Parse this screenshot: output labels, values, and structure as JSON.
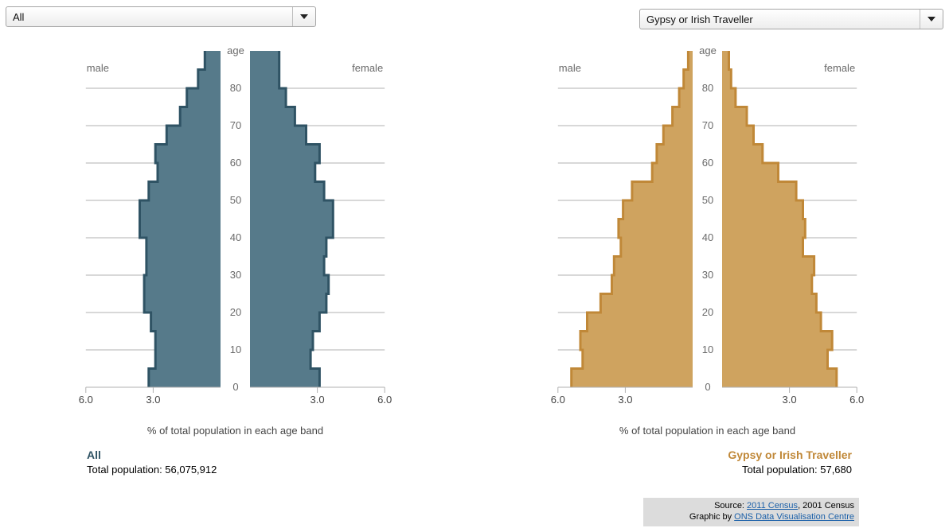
{
  "left_selector": {
    "value": "All"
  },
  "right_selector": {
    "value": "Gypsy or Irish Traveller"
  },
  "colors": {
    "left_fill": "#567a8a",
    "left_stroke": "#2f5364",
    "right_fill": "#cfa35f",
    "right_stroke": "#c08838",
    "axis": "#b0b0b0",
    "text": "#6a6a6a",
    "left_title": "#2f5364",
    "right_title": "#c08838"
  },
  "chart_data": [
    {
      "type": "bar",
      "orientation": "population-pyramid",
      "title": "All",
      "male_label": "male",
      "female_label": "female",
      "age_axis_label": "age",
      "xlabel": "% of total population in each age band",
      "age_ticks": [
        "0",
        "10",
        "20",
        "30",
        "40",
        "50",
        "60",
        "70",
        "80"
      ],
      "x_ticks": [
        "6.0",
        "3.0",
        "3.0",
        "6.0"
      ],
      "xlim": [
        0,
        6
      ],
      "age_bands": [
        "0-4",
        "5-9",
        "10-14",
        "15-19",
        "20-24",
        "25-29",
        "30-34",
        "35-39",
        "40-44",
        "45-49",
        "50-54",
        "55-59",
        "60-64",
        "65-69",
        "70-74",
        "75-79",
        "80-84",
        "85-89"
      ],
      "series": [
        {
          "name": "male",
          "values": [
            3.2,
            2.9,
            2.9,
            3.1,
            3.4,
            3.4,
            3.3,
            3.3,
            3.6,
            3.6,
            3.2,
            2.8,
            2.9,
            2.4,
            1.8,
            1.5,
            1.0,
            0.7
          ]
        },
        {
          "name": "female",
          "values": [
            3.1,
            2.7,
            2.8,
            3.1,
            3.4,
            3.5,
            3.3,
            3.4,
            3.7,
            3.7,
            3.3,
            2.9,
            3.1,
            2.5,
            2.0,
            1.6,
            1.3,
            1.3
          ]
        }
      ],
      "total_population_label": "Total population: 56,075,912"
    },
    {
      "type": "bar",
      "orientation": "population-pyramid",
      "title": "Gypsy or Irish Traveller",
      "male_label": "male",
      "female_label": "female",
      "age_axis_label": "age",
      "xlabel": "% of total population in each age band",
      "age_ticks": [
        "0",
        "10",
        "20",
        "30",
        "40",
        "50",
        "60",
        "70",
        "80"
      ],
      "x_ticks": [
        "6.0",
        "3.0",
        "3.0",
        "6.0"
      ],
      "xlim": [
        0,
        6
      ],
      "age_bands": [
        "0-4",
        "5-9",
        "10-14",
        "15-19",
        "20-24",
        "25-29",
        "30-34",
        "35-39",
        "40-44",
        "45-49",
        "50-54",
        "55-59",
        "60-64",
        "65-69",
        "70-74",
        "75-79",
        "80-84",
        "85-89"
      ],
      "series": [
        {
          "name": "male",
          "values": [
            5.4,
            4.9,
            5.0,
            4.7,
            4.1,
            3.6,
            3.5,
            3.2,
            3.3,
            3.1,
            2.7,
            1.8,
            1.6,
            1.3,
            0.9,
            0.6,
            0.4,
            0.2
          ]
        },
        {
          "name": "female",
          "values": [
            5.1,
            4.7,
            4.9,
            4.4,
            4.2,
            4.0,
            4.1,
            3.6,
            3.7,
            3.6,
            3.3,
            2.5,
            1.8,
            1.4,
            1.1,
            0.6,
            0.4,
            0.3
          ]
        }
      ],
      "total_population_label": "Total population: 57,680"
    }
  ],
  "source": {
    "prefix": "Source: ",
    "census_2011": "2011 Census",
    "census_2001": ", 2001 Census",
    "graphic_prefix": "Graphic by ",
    "credit": "ONS Data Visualisation Centre"
  }
}
